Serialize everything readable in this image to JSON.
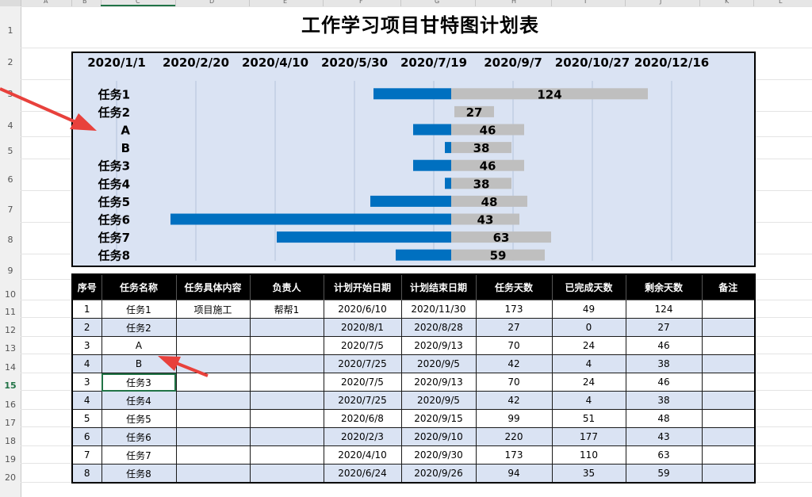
{
  "sheet": {
    "columns": [
      "A",
      "B",
      "C",
      "D",
      "E",
      "F",
      "G",
      "H",
      "I",
      "J",
      "K",
      "L"
    ],
    "rows": [
      "1",
      "2",
      "3",
      "4",
      "5",
      "6",
      "7",
      "8",
      "9",
      "10",
      "11",
      "12",
      "13",
      "14",
      "15",
      "16",
      "17",
      "18",
      "19",
      "20"
    ],
    "selected_row": "15",
    "selected_column": "C"
  },
  "title": "工作学习项目甘特图计划表",
  "chart_data": {
    "type": "bar",
    "subtype": "stacked-horizontal-gantt",
    "categories": [
      "任务1",
      "任务2",
      "A",
      "B",
      "任务3",
      "任务4",
      "任务5",
      "任务6",
      "任务7",
      "任务8"
    ],
    "x_tick_labels": [
      "2020/1/1",
      "2020/2/20",
      "2020/4/10",
      "2020/5/30",
      "2020/7/19",
      "2020/9/7",
      "2020/10/27",
      "2020/12/16"
    ],
    "xlim": [
      "2020/1/1",
      "2021/2/4"
    ],
    "reference_date": "2020/7/30",
    "series": [
      {
        "values": [
          49,
          0,
          24,
          4,
          24,
          4,
          51,
          177,
          110,
          35
        ],
        "color": "#0070c0"
      },
      {
        "values": [
          124,
          27,
          46,
          38,
          46,
          38,
          48,
          43,
          63,
          59
        ],
        "color": "#bfbfbf"
      }
    ],
    "data_labels": [
      "124",
      "27",
      "46",
      "38",
      "46",
      "38",
      "48",
      "43",
      "63",
      "59"
    ],
    "grid": true,
    "legend": "none"
  },
  "table": {
    "headers": [
      "序号",
      "任务名称",
      "任务具体内容",
      "负责人",
      "计划开始日期",
      "计划结束日期",
      "任务天数",
      "已完成天数",
      "剩余天数",
      "备注"
    ],
    "rows": [
      [
        "1",
        "任务1",
        "项目施工",
        "帮帮1",
        "2020/6/10",
        "2020/11/30",
        "173",
        "49",
        "124",
        ""
      ],
      [
        "2",
        "任务2",
        "",
        "",
        "2020/8/1",
        "2020/8/28",
        "27",
        "0",
        "27",
        ""
      ],
      [
        "3",
        "A",
        "",
        "",
        "2020/7/5",
        "2020/9/13",
        "70",
        "24",
        "46",
        ""
      ],
      [
        "4",
        "B",
        "",
        "",
        "2020/7/25",
        "2020/9/5",
        "42",
        "4",
        "38",
        ""
      ],
      [
        "3",
        "任务3",
        "",
        "",
        "2020/7/5",
        "2020/9/13",
        "70",
        "24",
        "46",
        ""
      ],
      [
        "4",
        "任务4",
        "",
        "",
        "2020/7/25",
        "2020/9/5",
        "42",
        "4",
        "38",
        ""
      ],
      [
        "5",
        "任务5",
        "",
        "",
        "2020/6/8",
        "2020/9/15",
        "99",
        "51",
        "48",
        ""
      ],
      [
        "6",
        "任务6",
        "",
        "",
        "2020/2/3",
        "2020/9/10",
        "220",
        "177",
        "43",
        ""
      ],
      [
        "7",
        "任务7",
        "",
        "",
        "2020/4/10",
        "2020/9/30",
        "173",
        "110",
        "63",
        ""
      ],
      [
        "8",
        "任务8",
        "",
        "",
        "2020/6/24",
        "2020/9/26",
        "94",
        "35",
        "59",
        ""
      ]
    ]
  },
  "colors": {
    "chart_bg": "#dae3f3",
    "completed": "#0070c0",
    "remaining": "#bfbfbf",
    "header_bg": "#000000",
    "alt_row": "#dae3f3",
    "arrow": "#e8413c"
  },
  "annotations": [
    "red-arrow-to-chart-label-A",
    "red-arrow-to-table-cell-A"
  ]
}
